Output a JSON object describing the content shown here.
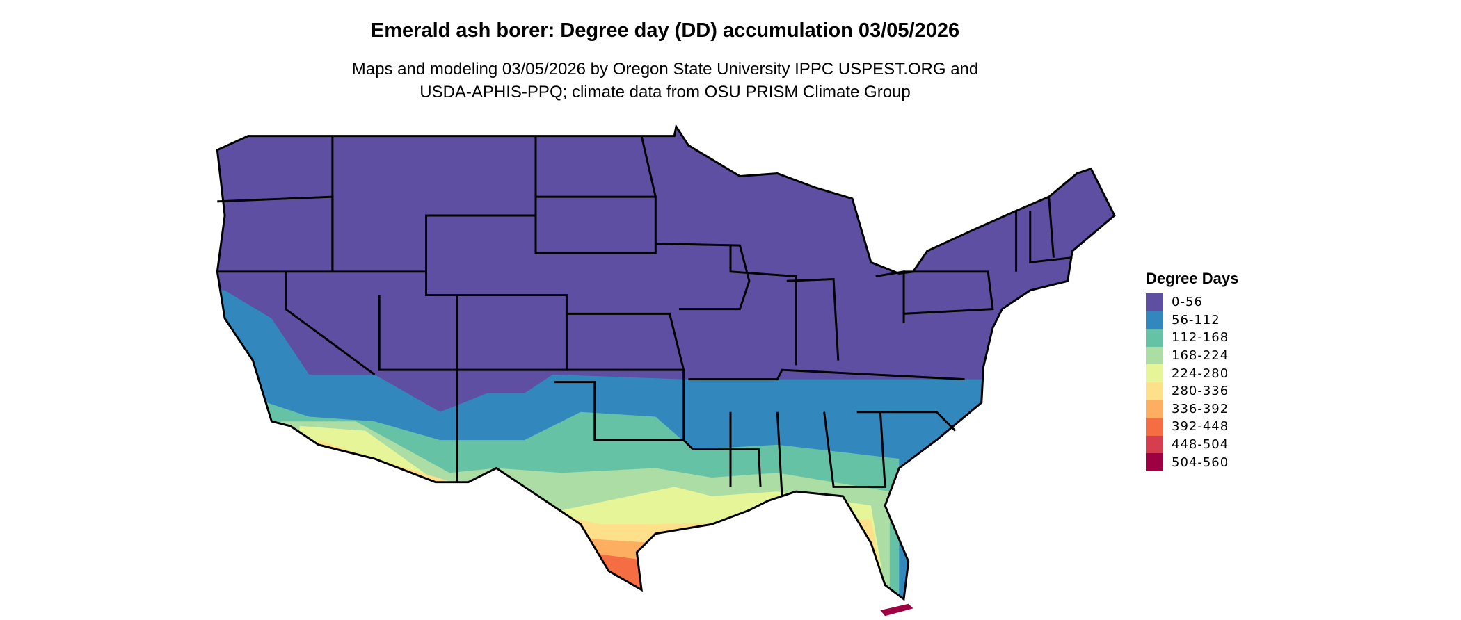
{
  "title": "Emerald ash borer: Degree day (DD) accumulation 03/05/2026",
  "subtitle_line1": "Maps and modeling 03/05/2026 by Oregon State University IPPC USPEST.ORG and",
  "subtitle_line2": "USDA-APHIS-PPQ; climate data from OSU PRISM Climate Group",
  "legend": {
    "title": "Degree Days",
    "items": [
      {
        "label": "0-56",
        "color": "#5E4FA2"
      },
      {
        "label": "56-112",
        "color": "#3288BD"
      },
      {
        "label": "112-168",
        "color": "#66C2A5"
      },
      {
        "label": "168-224",
        "color": "#ABDDA4"
      },
      {
        "label": "224-280",
        "color": "#E6F598"
      },
      {
        "label": "280-336",
        "color": "#FEE08B"
      },
      {
        "label": "336-392",
        "color": "#FDAE61"
      },
      {
        "label": "392-448",
        "color": "#F46D43"
      },
      {
        "label": "448-504",
        "color": "#D53E4F"
      },
      {
        "label": "504-560",
        "color": "#9E0142"
      }
    ]
  }
}
